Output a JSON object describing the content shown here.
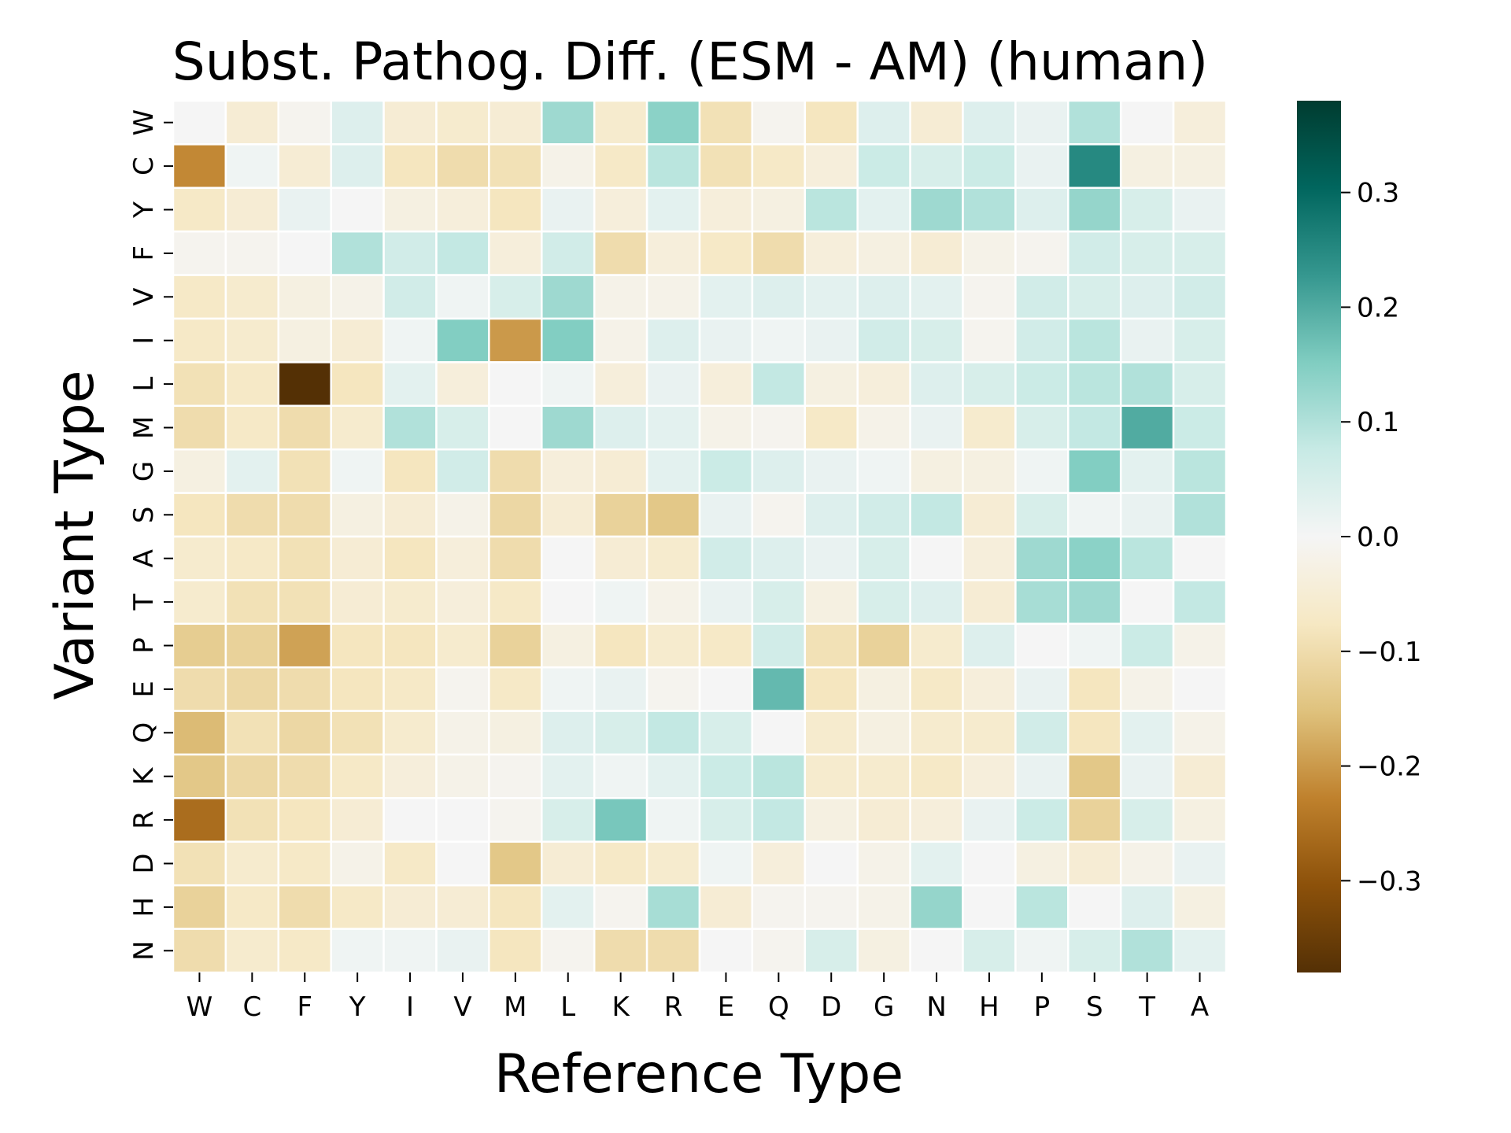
{
  "chart_data": {
    "type": "heatmap",
    "title": "Subst. Pathog. Diff. (ESM - AM) (human)",
    "xlabel": "Reference Type",
    "ylabel": "Variant Type",
    "x_categories": [
      "W",
      "C",
      "F",
      "Y",
      "I",
      "V",
      "M",
      "L",
      "K",
      "R",
      "E",
      "Q",
      "D",
      "G",
      "N",
      "H",
      "P",
      "S",
      "T",
      "A"
    ],
    "y_categories": [
      "W",
      "C",
      "Y",
      "F",
      "V",
      "I",
      "L",
      "M",
      "G",
      "S",
      "A",
      "T",
      "P",
      "E",
      "Q",
      "K",
      "R",
      "D",
      "H",
      "N"
    ],
    "values": [
      [
        0.0,
        -0.05,
        -0.01,
        0.04,
        -0.05,
        -0.06,
        -0.05,
        0.12,
        -0.06,
        0.14,
        -0.09,
        -0.01,
        -0.08,
        0.04,
        -0.05,
        0.04,
        0.02,
        0.1,
        0.0,
        -0.04
      ],
      [
        -0.22,
        0.01,
        -0.05,
        0.04,
        -0.08,
        -0.1,
        -0.09,
        -0.02,
        -0.07,
        0.09,
        -0.09,
        -0.07,
        -0.04,
        0.07,
        0.05,
        0.07,
        0.02,
        0.25,
        -0.03,
        -0.03
      ],
      [
        -0.07,
        -0.05,
        0.02,
        0.0,
        -0.03,
        -0.04,
        -0.08,
        0.02,
        -0.04,
        0.03,
        -0.04,
        -0.03,
        0.09,
        0.03,
        0.12,
        0.1,
        0.04,
        0.13,
        0.05,
        0.02
      ],
      [
        -0.01,
        -0.01,
        0.0,
        0.1,
        0.06,
        0.08,
        -0.04,
        0.06,
        -0.1,
        -0.04,
        -0.07,
        -0.1,
        -0.04,
        -0.03,
        -0.05,
        -0.02,
        -0.01,
        0.06,
        0.05,
        0.05
      ],
      [
        -0.07,
        -0.06,
        -0.03,
        -0.02,
        0.06,
        0.01,
        0.05,
        0.12,
        -0.02,
        -0.02,
        0.03,
        0.04,
        0.03,
        0.04,
        0.03,
        -0.01,
        0.06,
        0.05,
        0.04,
        0.06
      ],
      [
        -0.07,
        -0.06,
        -0.03,
        -0.05,
        0.01,
        0.15,
        -0.2,
        0.15,
        -0.02,
        0.04,
        0.02,
        0.01,
        0.02,
        0.06,
        0.05,
        -0.01,
        0.06,
        0.09,
        0.02,
        0.05
      ],
      [
        -0.09,
        -0.07,
        -0.38,
        -0.08,
        0.03,
        -0.04,
        0.0,
        0.01,
        -0.04,
        0.02,
        -0.04,
        0.08,
        -0.03,
        -0.04,
        0.04,
        0.05,
        0.07,
        0.09,
        0.1,
        0.05
      ],
      [
        -0.1,
        -0.07,
        -0.1,
        -0.06,
        0.1,
        0.05,
        0.0,
        0.12,
        0.04,
        0.03,
        -0.02,
        -0.01,
        -0.07,
        -0.02,
        0.02,
        -0.06,
        0.05,
        0.08,
        0.2,
        0.07
      ],
      [
        -0.03,
        0.03,
        -0.09,
        0.01,
        -0.08,
        0.06,
        -0.1,
        -0.04,
        -0.05,
        0.03,
        0.07,
        0.04,
        0.02,
        0.01,
        -0.03,
        -0.03,
        0.01,
        0.15,
        0.03,
        0.09
      ],
      [
        -0.08,
        -0.1,
        -0.1,
        -0.03,
        -0.05,
        -0.02,
        -0.11,
        -0.05,
        -0.12,
        -0.14,
        0.02,
        -0.01,
        0.04,
        0.06,
        0.08,
        -0.05,
        0.05,
        0.01,
        0.02,
        0.1
      ],
      [
        -0.06,
        -0.07,
        -0.09,
        -0.05,
        -0.08,
        -0.04,
        -0.1,
        0.0,
        -0.05,
        -0.06,
        0.06,
        0.04,
        0.02,
        0.05,
        0.0,
        -0.04,
        0.12,
        0.14,
        0.09,
        0.0
      ],
      [
        -0.06,
        -0.09,
        -0.09,
        -0.05,
        -0.06,
        -0.04,
        -0.07,
        0.0,
        0.01,
        -0.02,
        0.02,
        0.05,
        -0.03,
        0.05,
        0.04,
        -0.05,
        0.11,
        0.12,
        0.0,
        0.08
      ],
      [
        -0.13,
        -0.12,
        -0.19,
        -0.08,
        -0.08,
        -0.06,
        -0.12,
        -0.03,
        -0.08,
        -0.06,
        -0.07,
        0.06,
        -0.09,
        -0.12,
        -0.06,
        0.04,
        0.0,
        0.01,
        0.07,
        -0.02
      ],
      [
        -0.1,
        -0.11,
        -0.1,
        -0.08,
        -0.07,
        -0.01,
        -0.07,
        0.01,
        0.02,
        -0.01,
        0.0,
        0.18,
        -0.08,
        -0.03,
        -0.07,
        -0.04,
        0.02,
        -0.08,
        -0.02,
        0.0
      ],
      [
        -0.16,
        -0.09,
        -0.11,
        -0.09,
        -0.06,
        -0.02,
        -0.03,
        0.04,
        0.05,
        0.08,
        0.05,
        0.0,
        -0.06,
        -0.03,
        -0.06,
        -0.06,
        0.06,
        -0.08,
        0.03,
        -0.02
      ],
      [
        -0.14,
        -0.11,
        -0.1,
        -0.07,
        -0.04,
        -0.02,
        -0.01,
        0.03,
        0.01,
        0.03,
        0.07,
        0.09,
        -0.06,
        -0.06,
        -0.07,
        -0.04,
        0.02,
        -0.14,
        0.02,
        -0.05
      ],
      [
        -0.26,
        -0.09,
        -0.08,
        -0.05,
        0.0,
        0.0,
        -0.01,
        0.05,
        0.16,
        0.01,
        0.05,
        0.08,
        -0.03,
        -0.05,
        -0.04,
        0.02,
        0.07,
        -0.12,
        0.05,
        -0.03
      ],
      [
        -0.09,
        -0.06,
        -0.07,
        -0.02,
        -0.07,
        0.0,
        -0.14,
        -0.05,
        -0.07,
        -0.06,
        0.01,
        -0.04,
        0.0,
        -0.02,
        0.03,
        0.0,
        -0.03,
        -0.05,
        -0.02,
        0.02
      ],
      [
        -0.12,
        -0.07,
        -0.1,
        -0.07,
        -0.05,
        -0.05,
        -0.08,
        0.03,
        -0.01,
        0.11,
        -0.05,
        -0.01,
        -0.01,
        -0.02,
        0.13,
        0.0,
        0.09,
        0.0,
        0.04,
        -0.03
      ],
      [
        -0.1,
        -0.06,
        -0.07,
        0.01,
        0.01,
        0.02,
        -0.08,
        -0.01,
        -0.1,
        -0.1,
        0.0,
        -0.01,
        0.05,
        -0.03,
        0.0,
        0.05,
        0.01,
        0.05,
        0.1,
        0.03
      ]
    ],
    "vmin": -0.38,
    "vmax": 0.38,
    "colormap": "BrBG",
    "colorbar_ticks": [
      -0.3,
      -0.2,
      -0.1,
      0.0,
      0.1,
      0.2,
      0.3
    ],
    "colorbar_tick_labels": [
      "−0.3",
      "−0.2",
      "−0.1",
      "0.0",
      "0.1",
      "0.2",
      "0.3"
    ],
    "grid": "white cell borders",
    "legend": "colorbar right"
  }
}
